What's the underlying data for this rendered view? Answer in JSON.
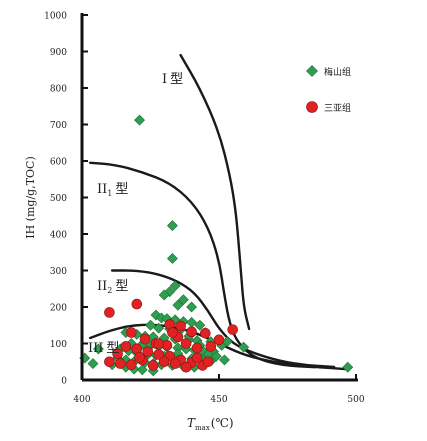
{
  "chart_data": {
    "type": "scatter",
    "xlabel_main": "T",
    "xlabel_sub": "max",
    "xlabel_unit": "(℃)",
    "ylabel": "IH (mg/g,TOC)",
    "xlim": [
      400,
      500
    ],
    "ylim": [
      0,
      1000
    ],
    "x_ticks": [
      400,
      450,
      500
    ],
    "y_ticks": [
      0,
      100,
      200,
      300,
      400,
      500,
      600,
      700,
      800,
      900,
      1000
    ],
    "grid": false,
    "legend_position": "top-right",
    "series": [
      {
        "name": "梅山组",
        "marker": "diamond",
        "color": "#2e9e4f",
        "points": [
          [
            421,
            712
          ],
          [
            433,
            423
          ],
          [
            433,
            333
          ],
          [
            434,
            258
          ],
          [
            432,
            242
          ],
          [
            430,
            233
          ],
          [
            437,
            220
          ],
          [
            435,
            205
          ],
          [
            440,
            200
          ],
          [
            427,
            178
          ],
          [
            429,
            170
          ],
          [
            431,
            168
          ],
          [
            434,
            165
          ],
          [
            437,
            160
          ],
          [
            440,
            158
          ],
          [
            443,
            150
          ],
          [
            425,
            150
          ],
          [
            428,
            142
          ],
          [
            432,
            140
          ],
          [
            436,
            138
          ],
          [
            445,
            130
          ],
          [
            416,
            130
          ],
          [
            420,
            125
          ],
          [
            423,
            120
          ],
          [
            426,
            118
          ],
          [
            430,
            115
          ],
          [
            434,
            112
          ],
          [
            439,
            110
          ],
          [
            442,
            108
          ],
          [
            447,
            105
          ],
          [
            418,
            100
          ],
          [
            422,
            98
          ],
          [
            425,
            95
          ],
          [
            428,
            92
          ],
          [
            431,
            90
          ],
          [
            435,
            88
          ],
          [
            438,
            85
          ],
          [
            441,
            82
          ],
          [
            444,
            80
          ],
          [
            448,
            78
          ],
          [
            451,
            95
          ],
          [
            453,
            105
          ],
          [
            459,
            90
          ],
          [
            414,
            85
          ],
          [
            417,
            80
          ],
          [
            420,
            75
          ],
          [
            424,
            70
          ],
          [
            427,
            68
          ],
          [
            430,
            65
          ],
          [
            433,
            62
          ],
          [
            436,
            60
          ],
          [
            440,
            58
          ],
          [
            444,
            55
          ],
          [
            447,
            52
          ],
          [
            413,
            60
          ],
          [
            416,
            55
          ],
          [
            419,
            50
          ],
          [
            423,
            48
          ],
          [
            426,
            45
          ],
          [
            429,
            42
          ],
          [
            433,
            40
          ],
          [
            437,
            38
          ],
          [
            441,
            35
          ],
          [
            416,
            35
          ],
          [
            419,
            30
          ],
          [
            422,
            28
          ],
          [
            426,
            25
          ],
          [
            401,
            60
          ],
          [
            404,
            45
          ],
          [
            406,
            85
          ],
          [
            411,
            42
          ],
          [
            497,
            35
          ],
          [
            435,
            72
          ],
          [
            439,
            120
          ],
          [
            443,
            95
          ],
          [
            446,
            70
          ],
          [
            449,
            65
          ],
          [
            452,
            55
          ]
        ]
      },
      {
        "name": "三亚组",
        "marker": "circle",
        "color": "#e02222",
        "points": [
          [
            410,
            185
          ],
          [
            420,
            208
          ],
          [
            432,
            152
          ],
          [
            436,
            148
          ],
          [
            440,
            132
          ],
          [
            445,
            128
          ],
          [
            455,
            138
          ],
          [
            418,
            130
          ],
          [
            423,
            112
          ],
          [
            427,
            100
          ],
          [
            431,
            95
          ],
          [
            435,
            118
          ],
          [
            438,
            100
          ],
          [
            442,
            88
          ],
          [
            447,
            92
          ],
          [
            450,
            110
          ],
          [
            413,
            72
          ],
          [
            416,
            92
          ],
          [
            420,
            85
          ],
          [
            424,
            78
          ],
          [
            428,
            70
          ],
          [
            432,
            65
          ],
          [
            436,
            55
          ],
          [
            440,
            48
          ],
          [
            444,
            40
          ],
          [
            410,
            50
          ],
          [
            414,
            45
          ],
          [
            418,
            42
          ],
          [
            422,
            55
          ],
          [
            426,
            40
          ],
          [
            430,
            50
          ],
          [
            434,
            45
          ],
          [
            438,
            35
          ],
          [
            442,
            60
          ],
          [
            446,
            50
          ],
          [
            421,
            62
          ],
          [
            428,
            100
          ],
          [
            433,
            130
          ]
        ]
      }
    ],
    "curves": [
      {
        "label_main": "I",
        "label_type": "型",
        "label_sub": "",
        "points": [
          [
            436,
            890
          ],
          [
            443,
            800
          ],
          [
            450,
            680
          ],
          [
            454,
            560
          ],
          [
            456,
            470
          ],
          [
            457,
            390
          ],
          [
            458,
            300
          ],
          [
            459,
            200
          ],
          [
            461,
            140
          ]
        ]
      },
      {
        "label_main": "II",
        "label_type": "型",
        "label_sub": "1",
        "points": [
          [
            403,
            595
          ],
          [
            412,
            590
          ],
          [
            422,
            570
          ],
          [
            432,
            540
          ],
          [
            440,
            490
          ],
          [
            446,
            420
          ],
          [
            450,
            330
          ],
          [
            452,
            230
          ],
          [
            454,
            150
          ],
          [
            457,
            100
          ],
          [
            463,
            60
          ],
          [
            473,
            40
          ],
          [
            485,
            35
          ]
        ]
      },
      {
        "label_main": "II",
        "label_type": "型",
        "label_sub": "2",
        "points": [
          [
            411,
            300
          ],
          [
            420,
            300
          ],
          [
            428,
            290
          ],
          [
            435,
            270
          ],
          [
            441,
            240
          ],
          [
            446,
            190
          ],
          [
            450,
            140
          ],
          [
            455,
            100
          ],
          [
            462,
            75
          ],
          [
            472,
            52
          ],
          [
            482,
            40
          ],
          [
            492,
            36
          ]
        ]
      },
      {
        "label_main": "III",
        "label_type": "型",
        "label_sub": "",
        "points": [
          [
            403,
            115
          ],
          [
            410,
            135
          ],
          [
            418,
            150
          ],
          [
            426,
            152
          ],
          [
            434,
            145
          ],
          [
            442,
            128
          ],
          [
            450,
            100
          ],
          [
            458,
            72
          ],
          [
            466,
            55
          ],
          [
            476,
            42
          ],
          [
            486,
            35
          ],
          [
            496,
            30
          ]
        ]
      }
    ]
  }
}
